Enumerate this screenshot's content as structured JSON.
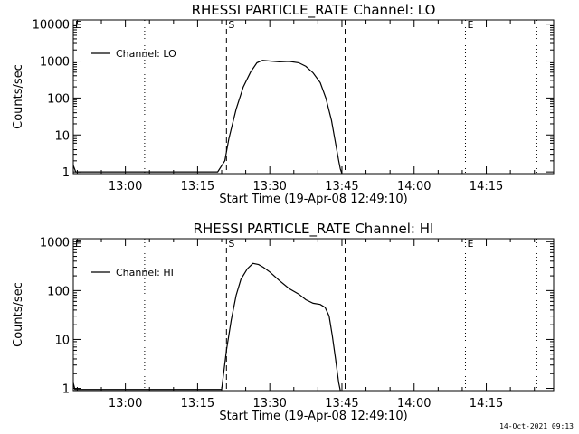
{
  "footer_stamp": "14-Oct-2021 09:13",
  "chart_data": [
    {
      "type": "line",
      "title": "RHESSI PARTICLE_RATE Channel: LO",
      "xlabel": "Start Time (19-Apr-08 12:49:10)",
      "ylabel": "Counts/sec",
      "y_scale": "log",
      "ylim": [
        0.9,
        13000
      ],
      "xlim": [
        "12:49:10",
        "14:29:00"
      ],
      "x_tick_labels": [
        "13:00",
        "13:15",
        "13:30",
        "13:45",
        "14:00",
        "14:15"
      ],
      "y_tick_labels": [
        "1",
        "10",
        "100",
        "1000",
        "10000"
      ],
      "legend_position": "top-left",
      "grid": false,
      "markers": [
        {
          "label": "E",
          "time": "12:49:10",
          "style": "dotted"
        },
        {
          "label": "",
          "time": "13:04:00",
          "style": "dotted"
        },
        {
          "label": "S",
          "time": "13:21:00",
          "style": "dashed"
        },
        {
          "label": "",
          "time": "13:45:40",
          "style": "dashed"
        },
        {
          "label": "E",
          "time": "14:10:40",
          "style": "dotted"
        },
        {
          "label": "",
          "time": "14:25:30",
          "style": "dotted"
        }
      ],
      "series": [
        {
          "name": "Channel: LO",
          "x": [
            "12:49:10",
            "12:49:40",
            "13:19:10",
            "13:20:40",
            "13:21:30",
            "13:23:00",
            "13:24:30",
            "13:26:00",
            "13:27:20",
            "13:28:30",
            "13:30:00",
            "13:32:00",
            "13:34:00",
            "13:36:00",
            "13:37:30",
            "13:39:00",
            "13:40:30",
            "13:41:40",
            "13:42:50",
            "13:43:40",
            "13:44:20",
            "13:44:40",
            "13:45:00"
          ],
          "y": [
            1.5,
            1.0,
            1.0,
            2.0,
            8,
            50,
            200,
            500,
            900,
            1050,
            1000,
            950,
            980,
            900,
            720,
            480,
            260,
            100,
            25,
            6,
            2,
            1.2,
            0.9
          ]
        }
      ]
    },
    {
      "type": "line",
      "title": "RHESSI PARTICLE_RATE Channel: HI",
      "xlabel": "Start Time (19-Apr-08 12:49:10)",
      "ylabel": "Counts/sec",
      "y_scale": "log",
      "ylim": [
        0.9,
        1150
      ],
      "xlim": [
        "12:49:10",
        "14:29:00"
      ],
      "x_tick_labels": [
        "13:00",
        "13:15",
        "13:30",
        "13:45",
        "14:00",
        "14:15"
      ],
      "y_tick_labels": [
        "1",
        "10",
        "100",
        "1000"
      ],
      "legend_position": "top-left",
      "grid": false,
      "markers": [
        {
          "label": "E",
          "time": "12:49:10",
          "style": "dotted"
        },
        {
          "label": "",
          "time": "13:04:00",
          "style": "dotted"
        },
        {
          "label": "S",
          "time": "13:21:00",
          "style": "dashed"
        },
        {
          "label": "",
          "time": "13:45:40",
          "style": "dashed"
        },
        {
          "label": "E",
          "time": "14:10:40",
          "style": "dotted"
        },
        {
          "label": "",
          "time": "14:25:30",
          "style": "dotted"
        }
      ],
      "series": [
        {
          "name": "Channel: HI",
          "x": [
            "12:49:10",
            "12:49:30",
            "13:20:00",
            "13:21:00",
            "13:22:00",
            "13:23:00",
            "13:24:00",
            "13:25:20",
            "13:26:30",
            "13:27:40",
            "13:28:40",
            "13:30:00",
            "13:32:00",
            "13:34:00",
            "13:36:00",
            "13:37:30",
            "13:39:00",
            "13:40:30",
            "13:41:30",
            "13:42:20",
            "13:43:00",
            "13:43:40",
            "13:44:20",
            "13:44:40"
          ],
          "y": [
            1.3,
            0.95,
            0.95,
            6,
            25,
            80,
            170,
            280,
            360,
            340,
            300,
            240,
            160,
            110,
            85,
            65,
            55,
            52,
            45,
            30,
            12,
            4,
            1.3,
            0.9
          ]
        }
      ]
    }
  ]
}
